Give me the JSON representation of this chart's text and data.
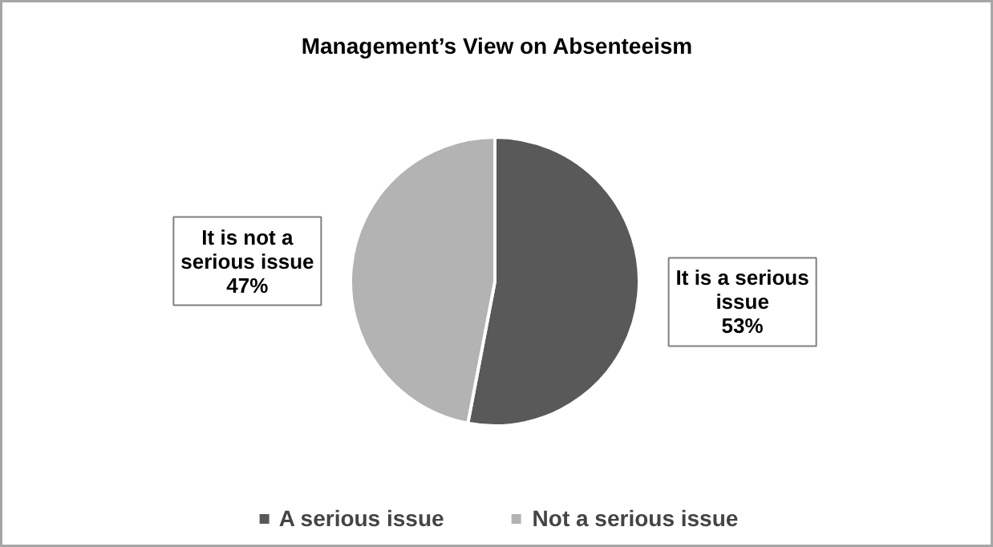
{
  "chart_data": {
    "type": "pie",
    "title": "Management’s View on Absenteeism",
    "categories": [
      "A serious issue",
      "Not a serious issue"
    ],
    "values": [
      53,
      47
    ],
    "colors": [
      "#595959",
      "#b3b3b3"
    ],
    "value_labels": [
      "It is a serious issue 53%",
      "It is not a serious issue 47%"
    ],
    "legend": "bottom"
  }
}
